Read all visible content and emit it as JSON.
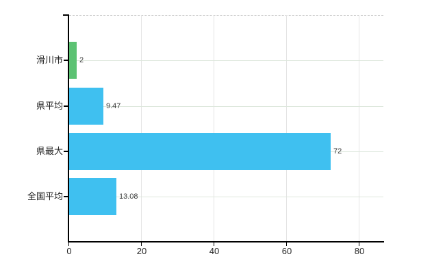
{
  "chart_data": {
    "type": "bar",
    "orientation": "horizontal",
    "title": "",
    "xlabel": "",
    "ylabel": "",
    "categories": [
      "滑川市",
      "県平均",
      "県最大",
      "全国平均"
    ],
    "values": [
      2,
      9.47,
      72,
      13.08
    ],
    "value_labels": [
      "2",
      "9.47",
      "72",
      "13.08"
    ],
    "x_ticks": [
      0,
      20,
      40,
      60,
      80
    ],
    "x_tick_labels": [
      "0",
      "20",
      "40",
      "60",
      "80"
    ],
    "xlim": [
      0,
      86.6
    ],
    "grid": true,
    "legend_position": "none",
    "bar_colors": [
      "#5cc273",
      "#3fc0f0",
      "#3fc0f0",
      "#3fc0f0"
    ],
    "colors": {
      "background": "#ffffff",
      "axis": "#000000",
      "vertical_grid": "#e4e4e4",
      "horizontal_grid": "#dde7dc",
      "top_border_dashed": "#cbcbcb",
      "value_text": "#3a3a3a",
      "label_text": "#1e1e1e"
    }
  }
}
